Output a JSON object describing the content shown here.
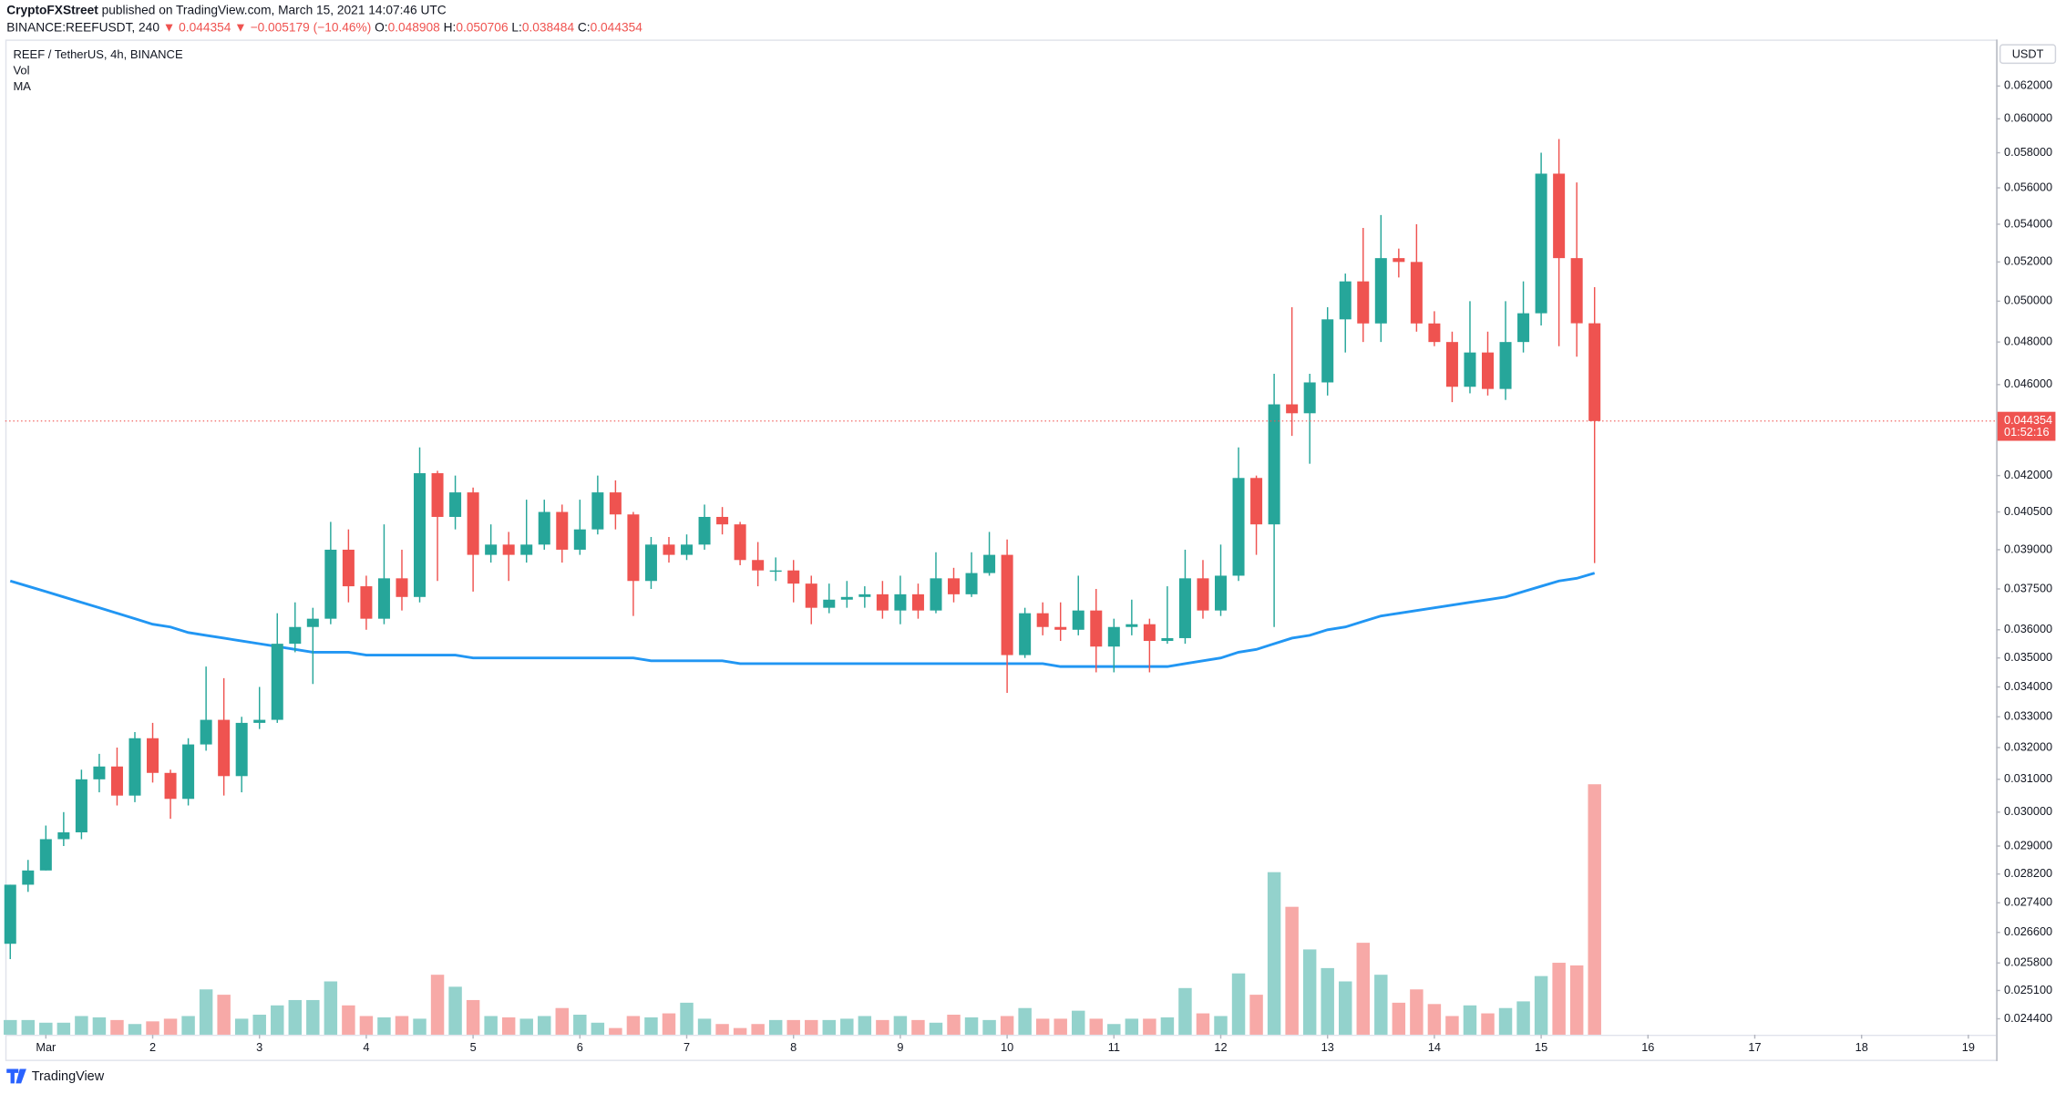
{
  "header": {
    "author": "CryptoFXStreet",
    "published": " published on TradingView.com, March 15, 2021 14:07:46 UTC",
    "symbol": "BINANCE:REEFUSDT, 240",
    "last": " ▼ 0.044354",
    "change": " ▼ −0.005179 (−10.46%)",
    "o_label": " O:",
    "o": "0.048908",
    "h_label": " H:",
    "h": "0.050706",
    "l_label": " L:",
    "l": "0.038484",
    "c_label": " C:",
    "c": "0.044354"
  },
  "footer": {
    "brand": "TradingView"
  },
  "chart_data": {
    "type": "candlestick",
    "title": "REEF / TetherUS, 4h, BINANCE",
    "volume_label": "Vol",
    "currency": "USDT",
    "countdown": "01:52:16",
    "log_scale": true,
    "grid": false,
    "up_color": "#26a69a",
    "down_color": "#ef5350",
    "volume_up_color": "#93d2cc",
    "volume_down_color": "#f7a9a7",
    "ylim": [
      0.02411,
      0.06495
    ],
    "yticks": [
      {
        "value": 0.062,
        "label": "0.062000"
      },
      {
        "value": 0.06,
        "label": "0.060000"
      },
      {
        "value": 0.058,
        "label": "0.058000"
      },
      {
        "value": 0.056,
        "label": "0.056000"
      },
      {
        "value": 0.054,
        "label": "0.054000"
      },
      {
        "value": 0.052,
        "label": "0.052000"
      },
      {
        "value": 0.05,
        "label": "0.050000"
      },
      {
        "value": 0.048,
        "label": "0.048000"
      },
      {
        "value": 0.046,
        "label": "0.046000"
      },
      {
        "value": 0.042,
        "label": "0.042000"
      },
      {
        "value": 0.0405,
        "label": "0.040500"
      },
      {
        "value": 0.039,
        "label": "0.039000"
      },
      {
        "value": 0.0375,
        "label": "0.037500"
      },
      {
        "value": 0.036,
        "label": "0.036000"
      },
      {
        "value": 0.035,
        "label": "0.035000"
      },
      {
        "value": 0.034,
        "label": "0.034000"
      },
      {
        "value": 0.033,
        "label": "0.033000"
      },
      {
        "value": 0.032,
        "label": "0.032000"
      },
      {
        "value": 0.031,
        "label": "0.031000"
      },
      {
        "value": 0.03,
        "label": "0.030000"
      },
      {
        "value": 0.029,
        "label": "0.029000"
      },
      {
        "value": 0.0282,
        "label": "0.028200"
      },
      {
        "value": 0.0274,
        "label": "0.027400"
      },
      {
        "value": 0.0266,
        "label": "0.026600"
      },
      {
        "value": 0.0258,
        "label": "0.025800"
      },
      {
        "value": 0.0251,
        "label": "0.025100"
      },
      {
        "value": 0.0244,
        "label": "0.024400"
      }
    ],
    "xlim": [
      -0.38,
      18.26
    ],
    "xticks": [
      {
        "value": 0,
        "label": "Mar"
      },
      1,
      2,
      3,
      4,
      5,
      6,
      7,
      8,
      9,
      10,
      11,
      12,
      13,
      14,
      15,
      16,
      17,
      18
    ],
    "xtick_labels": [
      "Mar",
      "2",
      "3",
      "4",
      "5",
      "6",
      "7",
      "8",
      "9",
      "10",
      "11",
      "12",
      "13",
      "14",
      "15",
      "16",
      "17",
      "18",
      "19"
    ],
    "ohlc": {
      "open": [
        0.0263,
        0.0279,
        0.0283,
        0.0292,
        0.0294,
        0.031,
        0.0314,
        0.0305,
        0.0323,
        0.0312,
        0.0304,
        0.0321,
        0.0329,
        0.0311,
        0.0328,
        0.0329,
        0.0355,
        0.0361,
        0.0364,
        0.039,
        0.0376,
        0.0364,
        0.0379,
        0.0372,
        0.0421,
        0.0403,
        0.0413,
        0.0388,
        0.0392,
        0.0388,
        0.0392,
        0.0405,
        0.039,
        0.0398,
        0.0413,
        0.0404,
        0.0378,
        0.0392,
        0.0388,
        0.0392,
        0.0403,
        0.04,
        0.0386,
        0.0382,
        0.0382,
        0.0377,
        0.0368,
        0.0371,
        0.0372,
        0.0373,
        0.0367,
        0.0373,
        0.0367,
        0.0379,
        0.0373,
        0.0381,
        0.0388,
        0.0351,
        0.0366,
        0.0361,
        0.036,
        0.0367,
        0.0354,
        0.0361,
        0.0362,
        0.0356,
        0.0357,
        0.0379,
        0.0367,
        0.038,
        0.0419,
        0.04,
        0.0451,
        0.0447,
        0.0461,
        0.0491,
        0.051,
        0.0489,
        0.0522,
        0.052,
        0.0489,
        0.048,
        0.0459,
        0.0475,
        0.0458,
        0.048,
        0.0494,
        0.0568,
        0.0522,
        0.048908
      ],
      "high": [
        0.0279,
        0.0286,
        0.0296,
        0.03,
        0.0313,
        0.0318,
        0.032,
        0.0325,
        0.0328,
        0.0313,
        0.0323,
        0.0347,
        0.0343,
        0.033,
        0.034,
        0.0366,
        0.037,
        0.0368,
        0.0401,
        0.0398,
        0.038,
        0.04,
        0.039,
        0.0432,
        0.0422,
        0.042,
        0.0415,
        0.04,
        0.0397,
        0.041,
        0.041,
        0.0408,
        0.041,
        0.042,
        0.0418,
        0.0405,
        0.0395,
        0.0395,
        0.0396,
        0.0408,
        0.0407,
        0.0401,
        0.0393,
        0.0387,
        0.0386,
        0.038,
        0.0377,
        0.0378,
        0.0376,
        0.0378,
        0.038,
        0.0377,
        0.0389,
        0.0383,
        0.0389,
        0.0397,
        0.0394,
        0.0368,
        0.037,
        0.037,
        0.038,
        0.0375,
        0.0364,
        0.0371,
        0.0364,
        0.0376,
        0.039,
        0.0386,
        0.0392,
        0.0432,
        0.042,
        0.0465,
        0.0497,
        0.0465,
        0.0497,
        0.0514,
        0.0538,
        0.0545,
        0.0527,
        0.054,
        0.0495,
        0.0485,
        0.05,
        0.0485,
        0.05,
        0.051,
        0.058,
        0.0588,
        0.0563,
        0.050706
      ],
      "low": [
        0.0259,
        0.0277,
        0.0283,
        0.029,
        0.0292,
        0.0306,
        0.0302,
        0.0303,
        0.0309,
        0.0298,
        0.0302,
        0.0319,
        0.0305,
        0.0306,
        0.0326,
        0.0328,
        0.0352,
        0.0341,
        0.0362,
        0.037,
        0.036,
        0.0362,
        0.0367,
        0.037,
        0.0378,
        0.0398,
        0.0374,
        0.0385,
        0.0378,
        0.0385,
        0.039,
        0.0385,
        0.0388,
        0.0396,
        0.0398,
        0.0365,
        0.0375,
        0.0385,
        0.0386,
        0.039,
        0.0396,
        0.0384,
        0.0376,
        0.0378,
        0.037,
        0.0362,
        0.0366,
        0.0368,
        0.0368,
        0.0364,
        0.0362,
        0.0364,
        0.0366,
        0.037,
        0.0372,
        0.038,
        0.0338,
        0.035,
        0.0358,
        0.0356,
        0.0358,
        0.0345,
        0.0345,
        0.0358,
        0.0345,
        0.0355,
        0.0355,
        0.0364,
        0.0365,
        0.0378,
        0.0388,
        0.0361,
        0.0437,
        0.0425,
        0.0455,
        0.0475,
        0.048,
        0.048,
        0.0512,
        0.0485,
        0.0478,
        0.0452,
        0.0456,
        0.0455,
        0.0453,
        0.0475,
        0.0488,
        0.0478,
        0.0473,
        0.038484
      ],
      "close": [
        0.0279,
        0.0283,
        0.0292,
        0.0294,
        0.031,
        0.0314,
        0.0305,
        0.0323,
        0.0312,
        0.0304,
        0.0321,
        0.0329,
        0.0311,
        0.0328,
        0.0329,
        0.0355,
        0.0361,
        0.0364,
        0.039,
        0.0376,
        0.0364,
        0.0379,
        0.0372,
        0.0421,
        0.0403,
        0.0413,
        0.0388,
        0.0392,
        0.0388,
        0.0392,
        0.0405,
        0.039,
        0.0398,
        0.0413,
        0.0404,
        0.0378,
        0.0392,
        0.0388,
        0.0392,
        0.0403,
        0.04,
        0.0386,
        0.0382,
        0.0382,
        0.0377,
        0.0368,
        0.0371,
        0.0372,
        0.0373,
        0.0367,
        0.0373,
        0.0367,
        0.0379,
        0.0373,
        0.0381,
        0.0388,
        0.0351,
        0.0366,
        0.0361,
        0.036,
        0.0367,
        0.0354,
        0.0361,
        0.0362,
        0.0356,
        0.0357,
        0.0379,
        0.0367,
        0.038,
        0.0419,
        0.04,
        0.0451,
        0.0447,
        0.0461,
        0.0491,
        0.051,
        0.0489,
        0.0522,
        0.052,
        0.0489,
        0.048,
        0.0459,
        0.0475,
        0.0458,
        0.048,
        0.0494,
        0.0568,
        0.0522,
        0.048908,
        0.044354
      ]
    },
    "volume": [
      11,
      11,
      9,
      9,
      14,
      13,
      11,
      8,
      10,
      12,
      14,
      34,
      30,
      12,
      15,
      22,
      26,
      26,
      40,
      22,
      14,
      13,
      14,
      12,
      45,
      36,
      26,
      14,
      13,
      12,
      14,
      20,
      15,
      9,
      5,
      14,
      13,
      16,
      24,
      12,
      8,
      5,
      8,
      11,
      11,
      11,
      11,
      12,
      14,
      11,
      14,
      11,
      9,
      15,
      13,
      11,
      14,
      20,
      12,
      12,
      18,
      12,
      8,
      12,
      12,
      13,
      35,
      16,
      14,
      46,
      30,
      122,
      96,
      64,
      50,
      40,
      69,
      45,
      24,
      34,
      23,
      14,
      22,
      16,
      20,
      25,
      44,
      54,
      52,
      188
    ],
    "ma": {
      "name": "MA",
      "color": "#2196f3",
      "values": [
        0.0378,
        0.0376,
        0.0374,
        0.0372,
        0.037,
        0.0368,
        0.0366,
        0.0364,
        0.0362,
        0.0361,
        0.0359,
        0.0358,
        0.0357,
        0.0356,
        0.0355,
        0.0354,
        0.0353,
        0.0352,
        0.0352,
        0.0352,
        0.0351,
        0.0351,
        0.0351,
        0.0351,
        0.0351,
        0.0351,
        0.035,
        0.035,
        0.035,
        0.035,
        0.035,
        0.035,
        0.035,
        0.035,
        0.035,
        0.035,
        0.0349,
        0.0349,
        0.0349,
        0.0349,
        0.0349,
        0.0348,
        0.0348,
        0.0348,
        0.0348,
        0.0348,
        0.0348,
        0.0348,
        0.0348,
        0.0348,
        0.0348,
        0.0348,
        0.0348,
        0.0348,
        0.0348,
        0.0348,
        0.0348,
        0.0348,
        0.0348,
        0.0347,
        0.0347,
        0.0347,
        0.0347,
        0.0347,
        0.0347,
        0.0347,
        0.0348,
        0.0349,
        0.035,
        0.0352,
        0.0353,
        0.0355,
        0.0357,
        0.0358,
        0.036,
        0.0361,
        0.0363,
        0.0365,
        0.0366,
        0.0367,
        0.0368,
        0.0369,
        0.037,
        0.0371,
        0.0372,
        0.0374,
        0.0376,
        0.0378,
        0.0379,
        0.0381
      ]
    }
  }
}
